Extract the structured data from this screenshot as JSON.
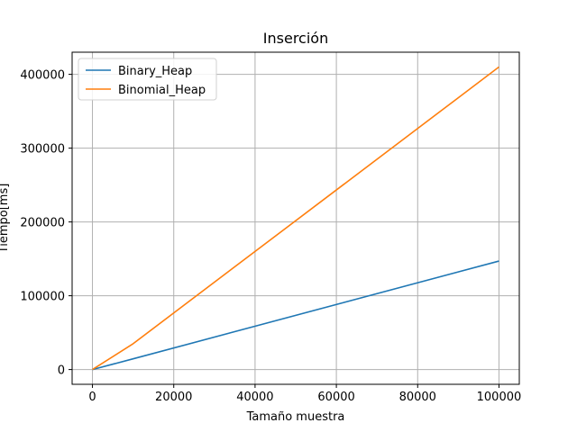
{
  "chart_data": {
    "type": "line",
    "title": "Inserción",
    "xlabel": "Tamaño muestra",
    "ylabel": "Tiempo[ms]",
    "xlim": [
      -5000,
      105000
    ],
    "ylim": [
      -20000,
      430000
    ],
    "xticks": [
      0,
      20000,
      40000,
      60000,
      80000,
      100000
    ],
    "yticks": [
      0,
      100000,
      200000,
      300000,
      400000
    ],
    "grid": true,
    "legend_position": "top-left",
    "series": [
      {
        "name": "Binary_Heap",
        "color": "#1f77b4",
        "x": [
          0,
          10000,
          100000
        ],
        "y": [
          0,
          14500,
          147000
        ]
      },
      {
        "name": "Binomial_Heap",
        "color": "#ff7f0e",
        "x": [
          0,
          10000,
          100000
        ],
        "y": [
          0,
          35000,
          410000
        ]
      }
    ]
  }
}
